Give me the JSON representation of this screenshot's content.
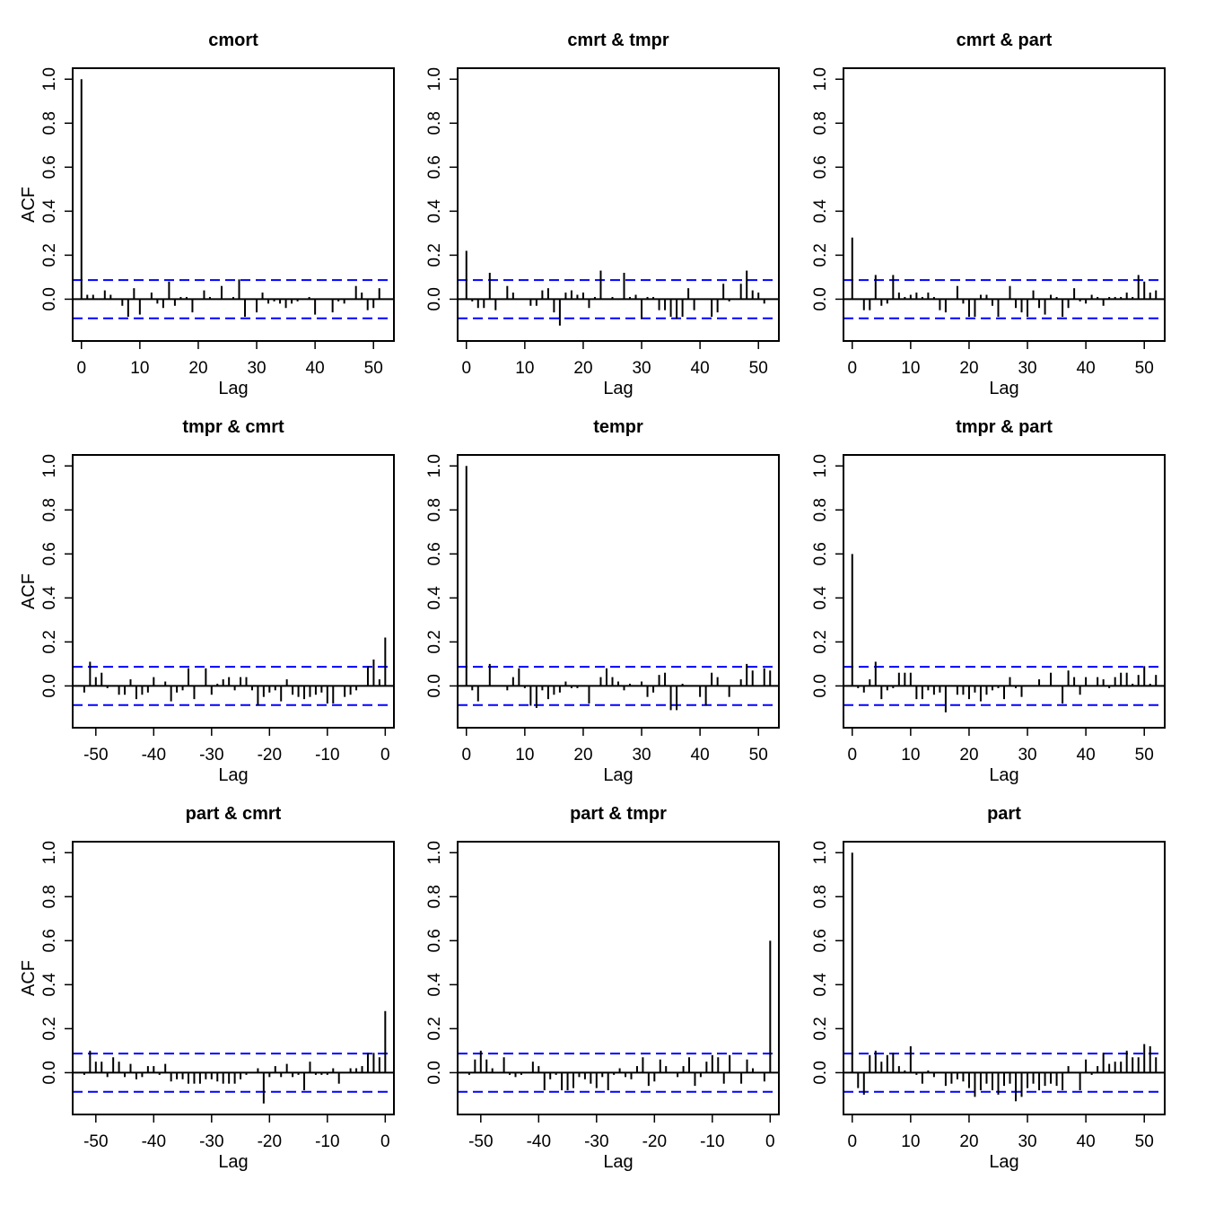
{
  "chart_data": [
    {
      "type": "bar",
      "title": "cmort",
      "xlabel": "Lag",
      "ylabel": "ACF",
      "xlim": [
        -1.5,
        53.5
      ],
      "ylim": [
        -0.19,
        1.05
      ],
      "xticks": [
        0,
        10,
        20,
        30,
        40,
        50
      ],
      "yticks": [
        0.0,
        0.2,
        0.4,
        0.6,
        0.8,
        1.0
      ],
      "ci": 0.087,
      "ci_color": "#0000ff",
      "bar_color": "#000000",
      "lags_start": 0,
      "values": [
        1.0,
        0.02,
        0.02,
        0.0,
        0.04,
        0.02,
        0.0,
        -0.03,
        -0.08,
        0.05,
        -0.07,
        0.0,
        0.03,
        -0.02,
        -0.04,
        0.08,
        -0.03,
        0.01,
        0.01,
        -0.06,
        0.0,
        0.04,
        0.01,
        0.0,
        0.06,
        0.0,
        0.01,
        0.09,
        -0.08,
        0.0,
        -0.06,
        0.03,
        -0.02,
        -0.01,
        -0.02,
        -0.04,
        -0.02,
        -0.01,
        0.0,
        0.01,
        -0.07,
        0.0,
        0.0,
        -0.06,
        -0.01,
        -0.02,
        0.0,
        0.06,
        0.03,
        -0.05,
        -0.04,
        0.05
      ]
    },
    {
      "type": "bar",
      "title": "cmrt & tmpr",
      "xlabel": "Lag",
      "ylabel": "",
      "xlim": [
        -1.5,
        53.5
      ],
      "ylim": [
        -0.19,
        1.05
      ],
      "xticks": [
        0,
        10,
        20,
        30,
        40,
        50
      ],
      "yticks": [
        0.0,
        0.2,
        0.4,
        0.6,
        0.8,
        1.0
      ],
      "ci": 0.087,
      "ci_color": "#0000ff",
      "bar_color": "#000000",
      "lags_start": 0,
      "values": [
        0.22,
        -0.01,
        -0.04,
        -0.04,
        0.12,
        -0.05,
        0.0,
        0.06,
        0.03,
        0.0,
        0.0,
        -0.03,
        -0.03,
        0.04,
        0.05,
        -0.06,
        -0.12,
        0.03,
        0.04,
        0.02,
        0.03,
        -0.04,
        0.01,
        0.13,
        0.0,
        0.01,
        0.0,
        0.12,
        0.01,
        0.02,
        -0.09,
        0.01,
        0.01,
        -0.05,
        -0.05,
        -0.08,
        -0.09,
        -0.08,
        0.05,
        -0.05,
        0.0,
        0.0,
        -0.08,
        -0.06,
        0.07,
        -0.01,
        0.0,
        0.07,
        0.13,
        0.04,
        0.03,
        -0.02
      ]
    },
    {
      "type": "bar",
      "title": "cmrt & part",
      "xlabel": "Lag",
      "ylabel": "",
      "xlim": [
        -1.5,
        53.5
      ],
      "ylim": [
        -0.19,
        1.05
      ],
      "xticks": [
        0,
        10,
        20,
        30,
        40,
        50
      ],
      "yticks": [
        0.0,
        0.2,
        0.4,
        0.6,
        0.8,
        1.0
      ],
      "ci": 0.087,
      "ci_color": "#0000ff",
      "bar_color": "#000000",
      "lags_start": 0,
      "values": [
        0.28,
        0.0,
        -0.05,
        -0.05,
        0.11,
        -0.03,
        -0.02,
        0.11,
        0.03,
        0.01,
        0.02,
        0.03,
        0.01,
        0.03,
        0.01,
        -0.05,
        -0.06,
        0.0,
        0.06,
        -0.02,
        -0.08,
        -0.08,
        0.02,
        0.02,
        -0.03,
        -0.08,
        0.0,
        0.06,
        -0.04,
        -0.06,
        -0.08,
        0.04,
        -0.04,
        -0.07,
        0.02,
        0.01,
        -0.08,
        -0.04,
        0.05,
        -0.01,
        -0.02,
        0.02,
        0.01,
        -0.03,
        0.01,
        0.01,
        0.01,
        0.03,
        0.01,
        0.11,
        0.08,
        0.03,
        0.04
      ]
    },
    {
      "type": "bar",
      "title": "tmpr & cmrt",
      "xlabel": "Lag",
      "ylabel": "ACF",
      "xlim": [
        -54,
        1.5
      ],
      "ylim": [
        -0.19,
        1.05
      ],
      "xticks": [
        -50,
        -40,
        -30,
        -20,
        -10,
        0
      ],
      "yticks": [
        0.0,
        0.2,
        0.4,
        0.6,
        0.8,
        1.0
      ],
      "ci": 0.087,
      "ci_color": "#0000ff",
      "bar_color": "#000000",
      "lags_start": -52,
      "values": [
        -0.03,
        0.11,
        0.04,
        0.06,
        -0.01,
        0.0,
        -0.04,
        -0.04,
        0.03,
        -0.06,
        -0.04,
        -0.03,
        0.04,
        0.0,
        0.02,
        -0.07,
        -0.03,
        -0.02,
        0.08,
        -0.06,
        0.0,
        0.08,
        -0.04,
        0.01,
        0.03,
        0.04,
        -0.02,
        0.04,
        0.04,
        -0.02,
        -0.09,
        -0.05,
        -0.03,
        -0.02,
        -0.07,
        0.03,
        -0.04,
        -0.05,
        -0.06,
        -0.05,
        -0.04,
        -0.03,
        -0.08,
        -0.08,
        0.0,
        -0.05,
        -0.04,
        -0.02,
        0.0,
        0.09,
        0.12,
        0.03,
        0.22
      ]
    },
    {
      "type": "bar",
      "title": "tempr",
      "xlabel": "Lag",
      "ylabel": "",
      "xlim": [
        -1.5,
        53.5
      ],
      "ylim": [
        -0.19,
        1.05
      ],
      "xticks": [
        0,
        10,
        20,
        30,
        40,
        50
      ],
      "yticks": [
        0.0,
        0.2,
        0.4,
        0.6,
        0.8,
        1.0
      ],
      "ci": 0.087,
      "ci_color": "#0000ff",
      "bar_color": "#000000",
      "lags_start": 0,
      "values": [
        1.0,
        -0.02,
        -0.07,
        0.0,
        0.1,
        0.0,
        0.0,
        -0.02,
        0.04,
        0.08,
        -0.01,
        -0.09,
        -0.1,
        -0.02,
        -0.06,
        -0.04,
        -0.03,
        0.02,
        -0.01,
        -0.01,
        0.0,
        -0.08,
        0.0,
        0.04,
        0.08,
        0.04,
        0.02,
        -0.02,
        0.01,
        0.0,
        0.02,
        -0.05,
        -0.03,
        0.05,
        0.06,
        -0.11,
        -0.11,
        0.01,
        0.0,
        0.0,
        -0.05,
        -0.09,
        0.06,
        0.04,
        0.0,
        -0.05,
        0.0,
        0.03,
        0.1,
        0.07,
        0.0,
        0.08,
        0.07
      ]
    },
    {
      "type": "bar",
      "title": "tmpr & part",
      "xlabel": "Lag",
      "ylabel": "",
      "xlim": [
        -1.5,
        53.5
      ],
      "ylim": [
        -0.19,
        1.05
      ],
      "xticks": [
        0,
        10,
        20,
        30,
        40,
        50
      ],
      "yticks": [
        0.0,
        0.2,
        0.4,
        0.6,
        0.8,
        1.0
      ],
      "ci": 0.087,
      "ci_color": "#0000ff",
      "bar_color": "#000000",
      "lags_start": 0,
      "values": [
        0.6,
        -0.01,
        -0.03,
        0.03,
        0.11,
        -0.06,
        -0.02,
        -0.01,
        0.06,
        0.06,
        0.06,
        -0.06,
        -0.06,
        -0.02,
        -0.04,
        -0.03,
        -0.12,
        0.0,
        -0.04,
        -0.04,
        -0.06,
        -0.03,
        -0.07,
        -0.04,
        -0.02,
        -0.01,
        -0.06,
        0.04,
        -0.01,
        -0.05,
        0.0,
        0.0,
        0.03,
        0.0,
        0.06,
        0.0,
        -0.08,
        0.07,
        0.04,
        -0.04,
        0.04,
        0.0,
        0.04,
        0.03,
        -0.01,
        0.04,
        0.06,
        0.06,
        0.01,
        0.05,
        0.09,
        0.01,
        0.05
      ]
    },
    {
      "type": "bar",
      "title": "part & cmrt",
      "xlabel": "Lag",
      "ylabel": "ACF",
      "xlim": [
        -54,
        1.5
      ],
      "ylim": [
        -0.19,
        1.05
      ],
      "xticks": [
        -50,
        -40,
        -30,
        -20,
        -10,
        0
      ],
      "yticks": [
        0.0,
        0.2,
        0.4,
        0.6,
        0.8,
        1.0
      ],
      "ci": 0.087,
      "ci_color": "#0000ff",
      "bar_color": "#000000",
      "lags_start": -52,
      "values": [
        -0.01,
        0.1,
        0.05,
        0.05,
        -0.02,
        0.07,
        0.05,
        -0.02,
        0.04,
        -0.03,
        -0.02,
        0.03,
        0.03,
        -0.01,
        0.04,
        -0.04,
        -0.03,
        -0.03,
        -0.05,
        -0.05,
        -0.05,
        -0.03,
        -0.03,
        -0.04,
        -0.05,
        -0.05,
        -0.05,
        -0.03,
        -0.01,
        0.0,
        0.02,
        -0.14,
        -0.02,
        0.03,
        -0.02,
        0.04,
        -0.02,
        -0.01,
        -0.08,
        0.05,
        -0.01,
        -0.01,
        -0.01,
        0.02,
        -0.05,
        0.0,
        0.02,
        0.02,
        0.03,
        0.09,
        0.09,
        0.07,
        0.28
      ]
    },
    {
      "type": "bar",
      "title": "part & tmpr",
      "xlabel": "Lag",
      "ylabel": "",
      "xlim": [
        -54,
        1.5
      ],
      "ylim": [
        -0.19,
        1.05
      ],
      "xticks": [
        -50,
        -40,
        -30,
        -20,
        -10,
        0
      ],
      "yticks": [
        0.0,
        0.2,
        0.4,
        0.6,
        0.8,
        1.0
      ],
      "ci": 0.087,
      "ci_color": "#0000ff",
      "bar_color": "#000000",
      "lags_start": -52,
      "values": [
        -0.01,
        0.06,
        0.1,
        0.06,
        0.02,
        0.0,
        0.07,
        -0.01,
        -0.02,
        -0.01,
        0.0,
        0.05,
        0.03,
        -0.08,
        -0.03,
        -0.01,
        -0.08,
        -0.08,
        -0.07,
        -0.02,
        -0.03,
        -0.05,
        -0.07,
        -0.02,
        -0.08,
        -0.01,
        0.02,
        -0.02,
        -0.03,
        0.03,
        0.07,
        -0.06,
        -0.04,
        0.06,
        0.03,
        0.0,
        -0.02,
        0.03,
        0.07,
        -0.06,
        -0.02,
        0.05,
        0.08,
        0.07,
        -0.05,
        0.08,
        0.0,
        -0.05,
        0.06,
        0.02,
        0.0,
        -0.04,
        0.6
      ]
    },
    {
      "type": "bar",
      "title": "part",
      "xlabel": "Lag",
      "ylabel": "",
      "xlim": [
        -1.5,
        53.5
      ],
      "ylim": [
        -0.19,
        1.05
      ],
      "xticks": [
        0,
        10,
        20,
        30,
        40,
        50
      ],
      "yticks": [
        0.0,
        0.2,
        0.4,
        0.6,
        0.8,
        1.0
      ],
      "ci": 0.087,
      "ci_color": "#0000ff",
      "bar_color": "#000000",
      "lags_start": 0,
      "values": [
        1.0,
        -0.07,
        -0.1,
        0.08,
        0.1,
        0.05,
        0.08,
        0.09,
        0.03,
        0.01,
        0.12,
        -0.01,
        -0.05,
        0.01,
        -0.02,
        0.0,
        -0.06,
        -0.05,
        -0.03,
        -0.04,
        -0.07,
        -0.11,
        -0.08,
        -0.05,
        -0.08,
        -0.1,
        -0.06,
        -0.05,
        -0.13,
        -0.11,
        -0.07,
        -0.05,
        -0.08,
        -0.06,
        -0.05,
        -0.06,
        -0.08,
        0.03,
        0.0,
        -0.08,
        0.06,
        -0.01,
        0.03,
        0.09,
        0.04,
        0.05,
        0.05,
        0.1,
        0.07,
        0.07,
        0.13,
        0.12,
        0.07
      ]
    }
  ]
}
